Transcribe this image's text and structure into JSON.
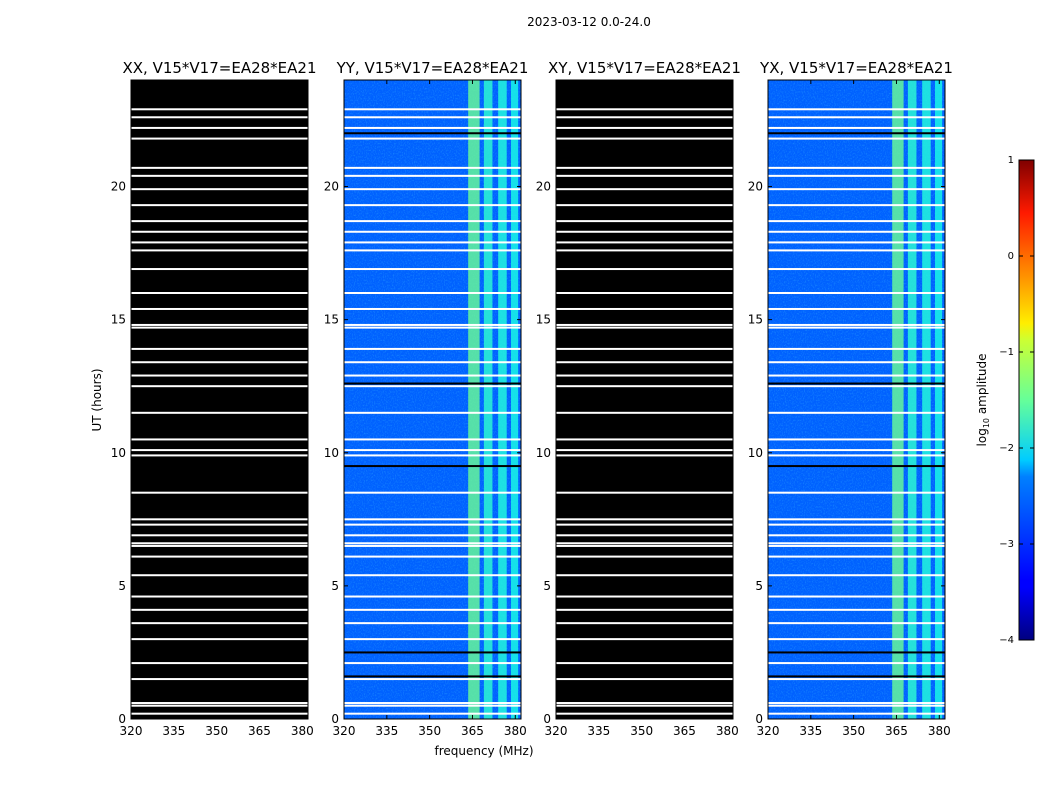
{
  "chart_data": {
    "type": "heatmap",
    "suptitle": "2023-03-12 0.0-24.0",
    "xlabel": "frequency (MHz)",
    "ylabel": "UT (hours)",
    "xlim": [
      320,
      382
    ],
    "ylim": [
      0,
      24
    ],
    "xticks": [
      320,
      335,
      350,
      365,
      380
    ],
    "xtick_labels": [
      "320",
      "335",
      "350",
      "365",
      "380"
    ],
    "yticks": [
      0,
      5,
      10,
      15,
      20
    ],
    "ytick_labels": [
      "0",
      "5",
      "10",
      "15",
      "20"
    ],
    "colormap": "jet",
    "colorbar": {
      "label": "log",
      "label_sub": "10",
      "label_suffix": " amplitude",
      "range": [
        -4,
        1
      ],
      "ticks": [
        1,
        0,
        -1,
        -2,
        -3,
        -4
      ],
      "tick_labels": [
        "1",
        "0",
        "−1",
        "−2",
        "−3",
        "−4"
      ]
    },
    "background_log_amplitude": -2.9,
    "rfi_bands": [
      {
        "start_mhz": 363.5,
        "end_mhz": 367.5,
        "log_amplitude": -1.6
      },
      {
        "start_mhz": 369.0,
        "end_mhz": 372.0,
        "log_amplitude": -1.9
      },
      {
        "start_mhz": 374.0,
        "end_mhz": 377.0,
        "log_amplitude": -1.95
      },
      {
        "start_mhz": 378.5,
        "end_mhz": 381.0,
        "log_amplitude": -2.0
      }
    ],
    "flagged_hours": [
      0.2,
      0.5,
      0.6,
      1.5,
      2.1,
      3.0,
      3.6,
      4.1,
      4.6,
      5.4,
      6.1,
      6.5,
      6.6,
      6.9,
      7.3,
      7.5,
      8.5,
      9.9,
      10.1,
      10.5,
      11.5,
      12.5,
      12.9,
      13.4,
      13.9,
      14.7,
      14.8,
      15.4,
      16.0,
      16.9,
      17.6,
      17.9,
      18.3,
      18.7,
      19.3,
      19.9,
      20.4,
      20.7,
      21.8,
      22.2,
      22.6,
      22.9
    ],
    "dropout_hours": [
      1.6,
      2.5,
      9.5,
      12.6,
      22.0
    ],
    "panels": [
      {
        "title": "XX, V15*V17=EA28*EA21",
        "polarization": "XX",
        "has_data": false
      },
      {
        "title": "YY, V15*V17=EA28*EA21",
        "polarization": "YY",
        "has_data": true
      },
      {
        "title": "XY, V15*V17=EA28*EA21",
        "polarization": "XY",
        "has_data": false
      },
      {
        "title": "YX, V15*V17=EA28*EA21",
        "polarization": "YX",
        "has_data": true
      }
    ]
  }
}
